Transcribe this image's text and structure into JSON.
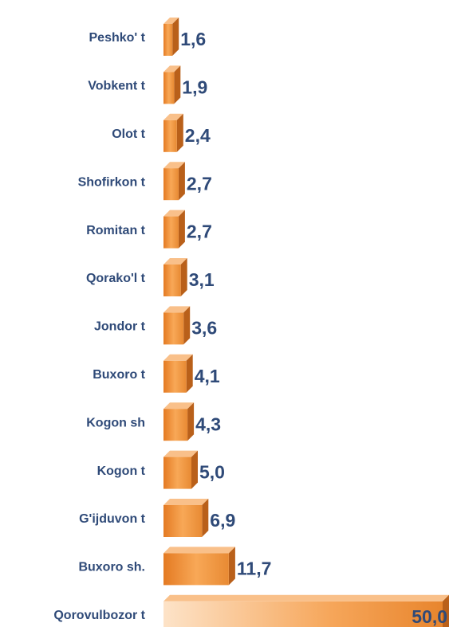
{
  "chart_data": {
    "type": "bar",
    "orientation": "horizontal",
    "color": "#f0913a",
    "categories": [
      "Peshko' t",
      "Vobkent t",
      "Olot t",
      "Shofirkon t",
      "Romitan t",
      "Qorako'l t",
      "Jondor t",
      "Buxoro t",
      "Kogon sh",
      "Kogon t",
      "G'ijduvon t",
      "Buxoro sh.",
      "Qorovulbozor t"
    ],
    "values": [
      1.6,
      1.9,
      2.4,
      2.7,
      2.7,
      3.1,
      3.6,
      4.1,
      4.3,
      5.0,
      6.9,
      11.7,
      50.0
    ],
    "value_labels": [
      "1,6",
      "1,9",
      "2,4",
      "2,7",
      "2,7",
      "3,1",
      "3,6",
      "4,1",
      "4,3",
      "5,0",
      "6,9",
      "11,7",
      "50,0"
    ]
  }
}
